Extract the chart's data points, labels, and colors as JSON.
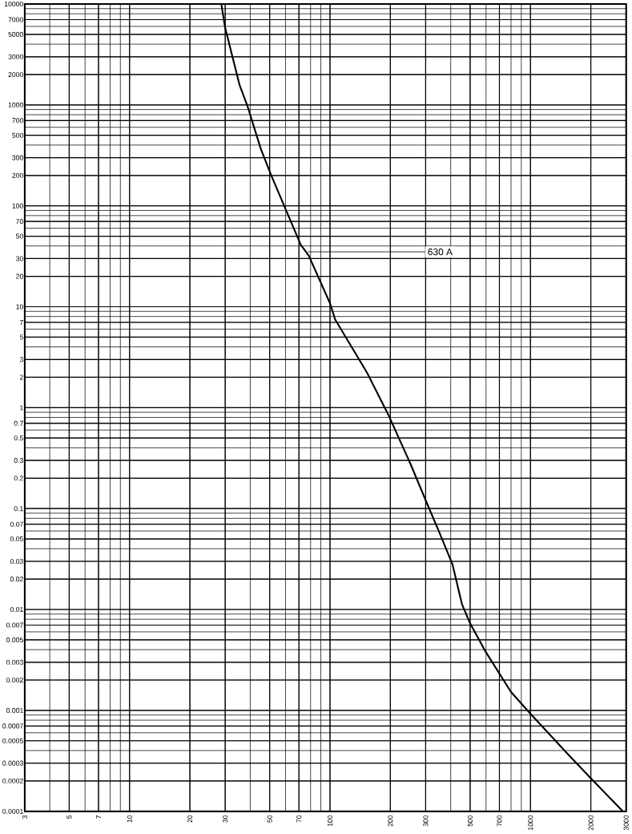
{
  "chart_data": {
    "type": "line",
    "log": "xy",
    "grid": true,
    "color": "#000000",
    "line_style": "solid",
    "x": [
      28.7,
      29.9,
      35.4,
      38.8,
      45.2,
      51,
      59.6,
      71.5,
      78.3,
      100,
      106,
      153,
      196,
      251,
      300,
      351,
      408,
      455,
      498,
      598,
      800,
      993,
      1521,
      2031,
      2890
    ],
    "values": [
      10000,
      5970,
      1570,
      966,
      365,
      199,
      96,
      41,
      32.2,
      10.8,
      7.5,
      2.22,
      0.84,
      0.282,
      0.121,
      0.058,
      0.0281,
      0.0113,
      0.0074,
      0.0038,
      0.00152,
      0.00094,
      0.000377,
      0.000206,
      0.0001
    ],
    "xlim": [
      3,
      3000
    ],
    "ylim": [
      0.0001,
      10000
    ],
    "xticks": [
      3,
      5,
      7,
      10,
      20,
      30,
      50,
      70,
      100,
      200,
      300,
      500,
      700,
      1000,
      2000,
      3000
    ],
    "yticks": [
      0.0001,
      0.0002,
      0.0003,
      0.0005,
      0.0007,
      0.001,
      0.002,
      0.003,
      0.005,
      0.007,
      0.01,
      0.02,
      0.03,
      0.05,
      0.07,
      0.1,
      0.2,
      0.3,
      0.5,
      0.7,
      1,
      2,
      3,
      5,
      7,
      10,
      20,
      30,
      50,
      70,
      100,
      200,
      300,
      500,
      700,
      1000,
      2000,
      3000,
      5000,
      7000,
      10000
    ],
    "annotations": [
      {
        "text": "630 A",
        "x": 75,
        "y": 35
      }
    ]
  }
}
